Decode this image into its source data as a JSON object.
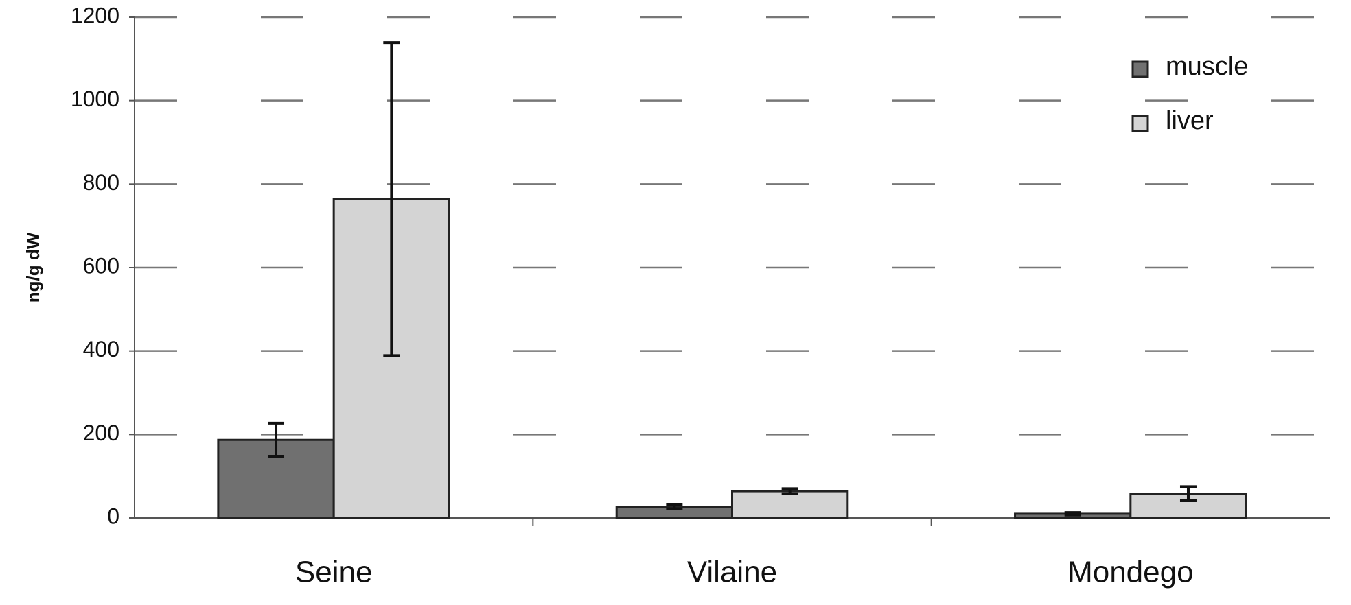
{
  "chart_data": {
    "type": "bar",
    "y_label": "ng/g dW",
    "categories": [
      "Seine",
      "Vilaine",
      "Mondego"
    ],
    "series": [
      {
        "name": "muscle",
        "color": "#707070",
        "values": [
          187,
          27,
          10
        ],
        "errors": [
          40,
          5,
          3
        ]
      },
      {
        "name": "liver",
        "color": "#d4d4d4",
        "values": [
          764,
          64,
          58
        ],
        "errors": [
          375,
          6,
          17
        ]
      }
    ],
    "ylim": [
      0,
      1200
    ],
    "yticks": [
      0,
      200,
      400,
      600,
      800,
      1000,
      1200
    ],
    "grid": true,
    "legend": "top-right"
  }
}
